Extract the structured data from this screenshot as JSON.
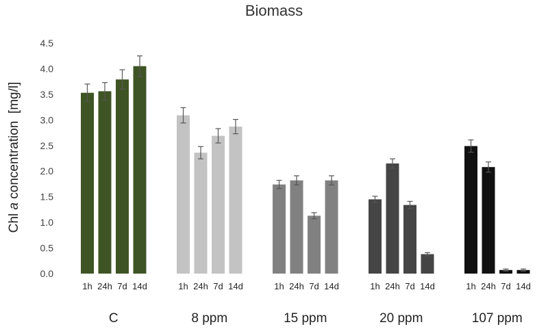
{
  "chart_data": {
    "type": "bar",
    "title": "Biomass",
    "ylabel": {
      "prefix": "Chl ",
      "italic": "a",
      "suffix": " concentration  [mg/l]"
    },
    "xlabel": "",
    "ylim": [
      0,
      4.5
    ],
    "yticks": [
      "0.0",
      "0.5",
      "1.0",
      "1.5",
      "2.0",
      "2.5",
      "3.0",
      "3.5",
      "4.0",
      "4.5"
    ],
    "grid": false,
    "sub_categories": [
      "1h",
      "24h",
      "7d",
      "14d"
    ],
    "groups": [
      {
        "name": "C",
        "color": "#3f5424",
        "values": [
          3.53,
          3.56,
          3.79,
          4.05
        ],
        "errors": [
          0.17,
          0.17,
          0.19,
          0.2
        ]
      },
      {
        "name": "8 ppm",
        "color": "#c3c3c3",
        "values": [
          3.09,
          2.36,
          2.69,
          2.87
        ],
        "errors": [
          0.15,
          0.12,
          0.14,
          0.14
        ]
      },
      {
        "name": "15 ppm",
        "color": "#818181",
        "values": [
          1.74,
          1.82,
          1.13,
          1.82
        ],
        "errors": [
          0.08,
          0.09,
          0.06,
          0.09
        ]
      },
      {
        "name": "20 ppm",
        "color": "#454545",
        "values": [
          1.45,
          2.15,
          1.34,
          0.38
        ],
        "errors": [
          0.06,
          0.09,
          0.07,
          0.03
        ]
      },
      {
        "name": "107 ppm",
        "color": "#111111",
        "values": [
          2.49,
          2.08,
          0.07,
          0.07
        ],
        "errors": [
          0.12,
          0.1,
          0.02,
          0.02
        ]
      }
    ]
  }
}
